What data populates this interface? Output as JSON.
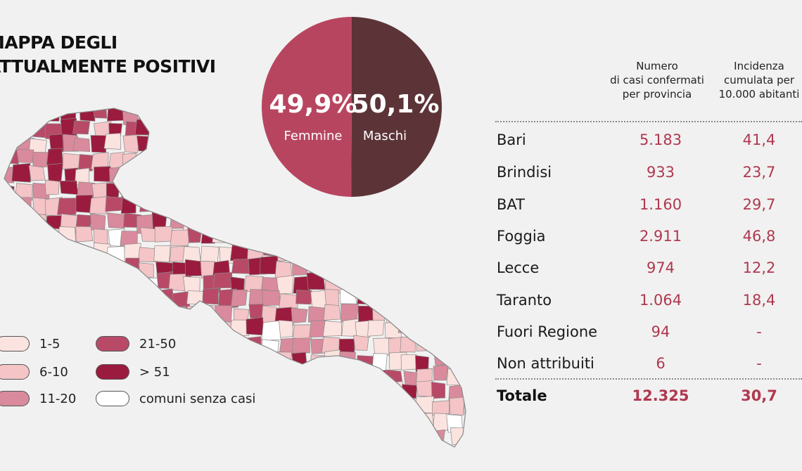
{
  "title": {
    "line1": "MAPPA DEGLI",
    "line2": "ATTUALMENTE POSITIVI"
  },
  "gender": {
    "female": {
      "percent": "49,9%",
      "label": "Femmine",
      "value": 49.9,
      "color": "#b84560"
    },
    "male": {
      "percent": "50,1%",
      "label": "Maschi",
      "value": 50.1,
      "color": "#5c3438"
    }
  },
  "legend": [
    {
      "label": "1-5",
      "color": "#fbe3df"
    },
    {
      "label": "6-10",
      "color": "#f4c4c6"
    },
    {
      "label": "11-20",
      "color": "#d98a9c"
    },
    {
      "label": "21-50",
      "color": "#b84a67"
    },
    {
      "label": "> 51",
      "color": "#9b1b3e"
    },
    {
      "label": "comuni senza casi",
      "color": "#ffffff"
    }
  ],
  "table": {
    "headers": {
      "cases": [
        "Numero",
        "di casi confermati",
        "per provincia"
      ],
      "incidence": [
        "Incidenza",
        "cumulata per",
        "10.000 abitanti"
      ]
    },
    "rows": [
      {
        "name": "Bari",
        "cases": "5.183",
        "incidence": "41,4"
      },
      {
        "name": "Brindisi",
        "cases": "933",
        "incidence": "23,7"
      },
      {
        "name": "BAT",
        "cases": "1.160",
        "incidence": "29,7"
      },
      {
        "name": "Foggia",
        "cases": "2.911",
        "incidence": "46,8"
      },
      {
        "name": "Lecce",
        "cases": "974",
        "incidence": "12,2"
      },
      {
        "name": "Taranto",
        "cases": "1.064",
        "incidence": "18,4"
      },
      {
        "name": "Fuori Regione",
        "cases": "94",
        "incidence": "-"
      },
      {
        "name": "Non attribuiti",
        "cases": "6",
        "incidence": "-"
      }
    ],
    "total": {
      "name": "Totale",
      "cases": "12.325",
      "incidence": "30,7"
    }
  },
  "map": {
    "region": "Puglia",
    "palette": [
      "#fbe3df",
      "#f4c4c6",
      "#d98a9c",
      "#b84a67",
      "#9b1b3e",
      "#ffffff"
    ],
    "border_color": "#8a8a8a"
  }
}
